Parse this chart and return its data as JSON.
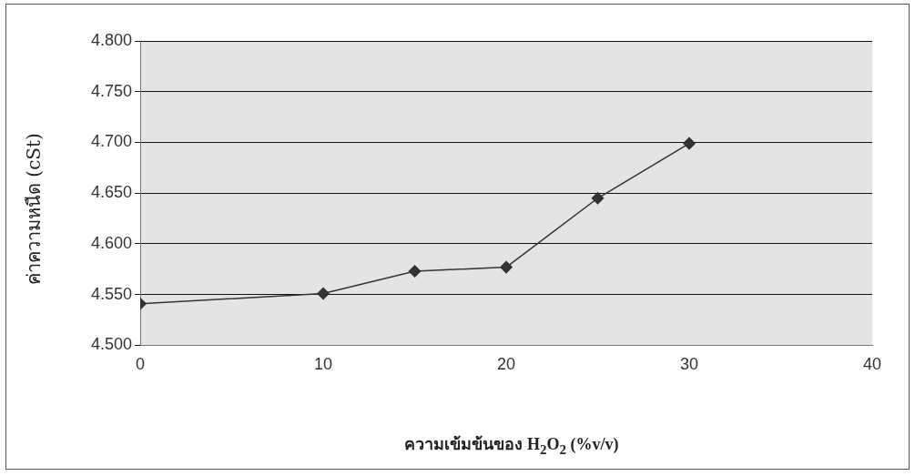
{
  "chart_data": {
    "type": "line",
    "xlabel": "ความเข้มข้นของ H$_{2}$O$_{2}$ (%v/v)",
    "ylabel": "ค่าความหนืด (cSt)",
    "x": [
      0,
      10,
      15,
      20,
      25,
      30
    ],
    "series": [
      {
        "color": "#333333",
        "values": [
          4.541,
          4.551,
          4.573,
          4.577,
          4.645,
          4.699
        ]
      }
    ],
    "xlim": [
      0,
      40
    ],
    "xticks": [
      0,
      10,
      20,
      30,
      40
    ],
    "ylim": [
      4.5,
      4.8
    ],
    "yticks": [
      {
        "value": 4.5,
        "label": "4.500"
      },
      {
        "value": 4.55,
        "label": "4.550"
      },
      {
        "value": 4.6,
        "label": "4.600"
      },
      {
        "value": 4.65,
        "label": "4.650"
      },
      {
        "value": 4.7,
        "label": "4.700"
      },
      {
        "value": 4.75,
        "label": "4.750"
      },
      {
        "value": 4.8,
        "label": "4.800"
      }
    ],
    "grid": "y",
    "legend": false,
    "marker": "diamond",
    "line_style": "solid"
  }
}
